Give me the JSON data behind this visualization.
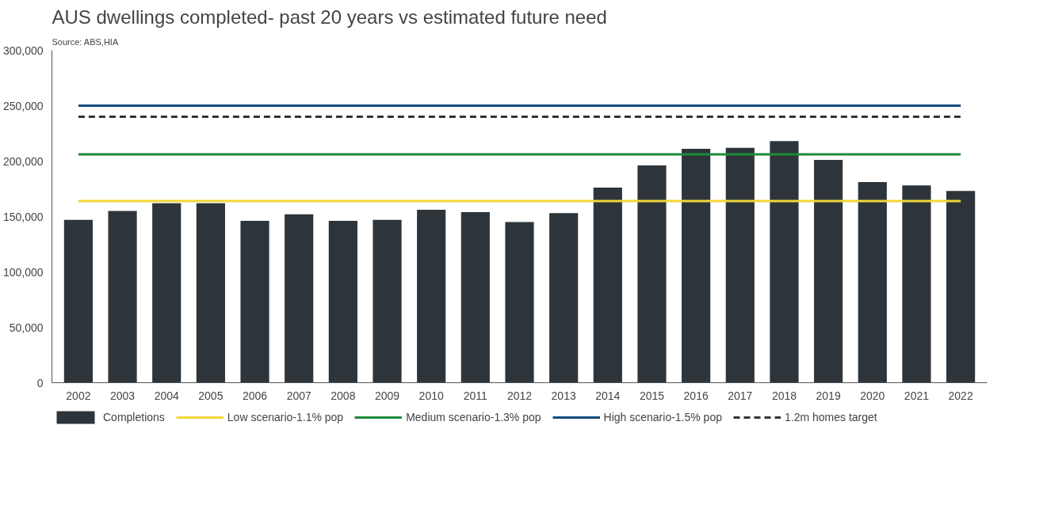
{
  "chart_data": {
    "type": "bar",
    "title": "AUS dwellings completed- past 20 years vs estimated future need",
    "annotations": [
      "Source: ABS,HIA"
    ],
    "categories": [
      "2002",
      "2003",
      "2004",
      "2005",
      "2006",
      "2007",
      "2008",
      "2009",
      "2010",
      "2011",
      "2012",
      "2013",
      "2014",
      "2015",
      "2016",
      "2017",
      "2018",
      "2019",
      "2020",
      "2021",
      "2022"
    ],
    "ylim": [
      0,
      300000
    ],
    "yticks": [
      {
        "value": 0,
        "label": "0"
      },
      {
        "value": 50000,
        "label": "50,000"
      },
      {
        "value": 100000,
        "label": "100,000"
      },
      {
        "value": 150000,
        "label": "150,000"
      },
      {
        "value": 200000,
        "label": "200,000"
      },
      {
        "value": 250000,
        "label": "250,000"
      },
      {
        "value": 300000,
        "label": "300,000"
      }
    ],
    "grid": false,
    "legend": "bottom",
    "series": [
      {
        "name": "Completions",
        "color": "#2d353b",
        "values": [
          147000,
          155000,
          162000,
          162000,
          146000,
          152000,
          146000,
          147000,
          156000,
          154000,
          145000,
          153000,
          176000,
          196000,
          211000,
          212000,
          218000,
          201000,
          181000,
          178000,
          173000
        ]
      },
      {
        "name": "Low scenario-1.1% pop",
        "type": "line",
        "color": "#f2d63a",
        "line_style": "solid",
        "values": [
          164000,
          164000,
          164000,
          164000,
          164000,
          164000,
          164000,
          164000,
          164000,
          164000,
          164000,
          164000,
          164000,
          164000,
          164000,
          164000,
          164000,
          164000,
          164000,
          164000,
          164000
        ]
      },
      {
        "name": "Medium scenario-1.3% pop",
        "type": "line",
        "color": "#1e8a3a",
        "line_style": "solid",
        "values": [
          206000,
          206000,
          206000,
          206000,
          206000,
          206000,
          206000,
          206000,
          206000,
          206000,
          206000,
          206000,
          206000,
          206000,
          206000,
          206000,
          206000,
          206000,
          206000,
          206000,
          206000
        ]
      },
      {
        "name": "High scenario-1.5% pop",
        "type": "line",
        "color": "#134b7c",
        "line_style": "solid",
        "values": [
          250000,
          250000,
          250000,
          250000,
          250000,
          250000,
          250000,
          250000,
          250000,
          250000,
          250000,
          250000,
          250000,
          250000,
          250000,
          250000,
          250000,
          250000,
          250000,
          250000,
          250000
        ]
      },
      {
        "name": "1.2m homes target",
        "type": "line",
        "color": "#2d353b",
        "line_style": "dashed",
        "values": [
          240000,
          240000,
          240000,
          240000,
          240000,
          240000,
          240000,
          240000,
          240000,
          240000,
          240000,
          240000,
          240000,
          240000,
          240000,
          240000,
          240000,
          240000,
          240000,
          240000,
          240000
        ]
      }
    ]
  }
}
